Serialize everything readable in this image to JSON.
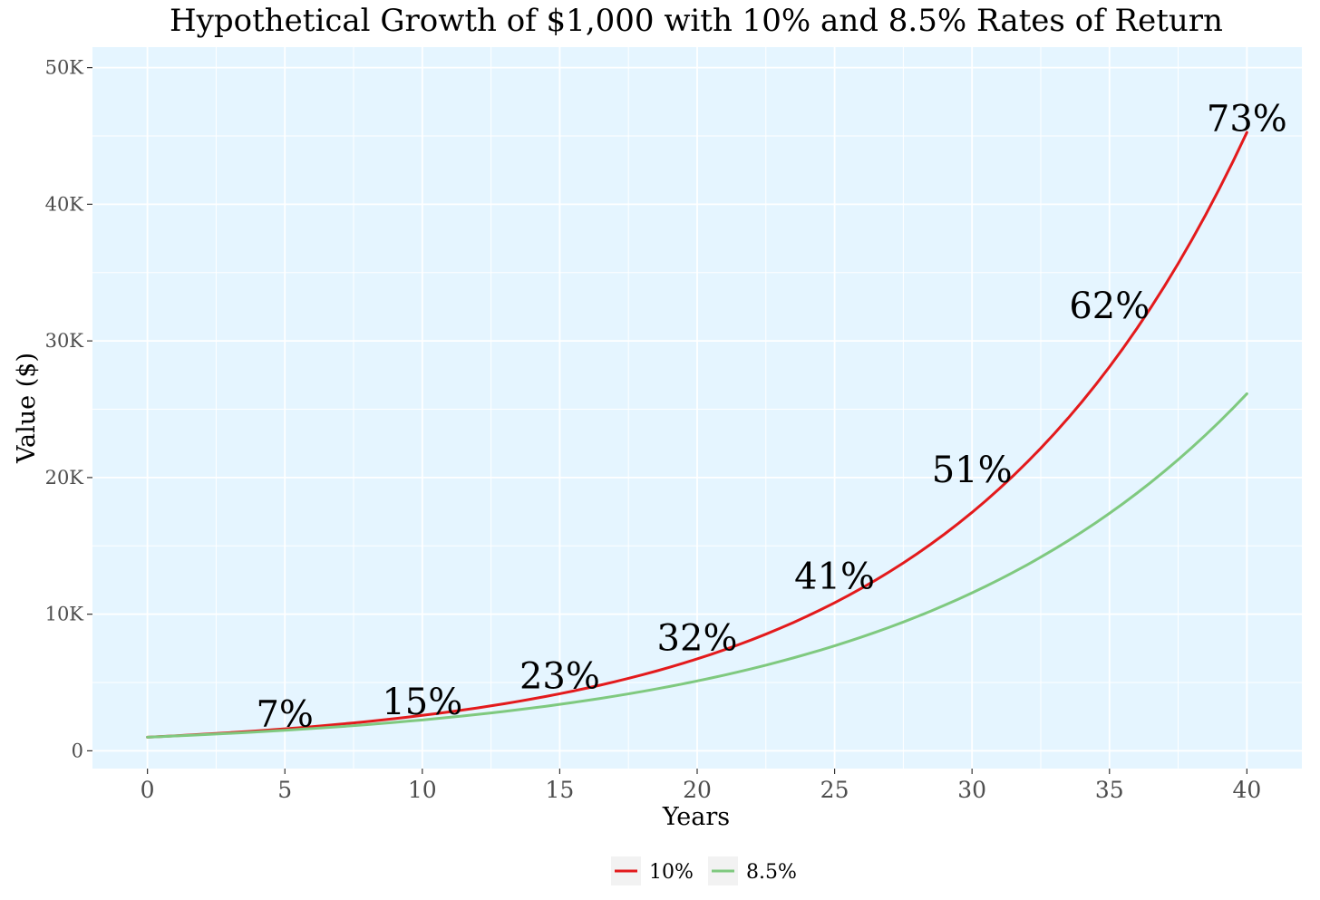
{
  "chart_data": {
    "type": "line",
    "title": "Hypothetical Growth of $1,000 with 10% and 8.5% Rates of Return",
    "xlabel": "Years",
    "ylabel": "Value ($)",
    "xlim": [
      -2,
      42
    ],
    "ylim": [
      -1300,
      51500
    ],
    "x_ticks": [
      0,
      5,
      10,
      15,
      20,
      25,
      30,
      35,
      40
    ],
    "x_tick_labels": [
      "0",
      "5",
      "10",
      "15",
      "20",
      "25",
      "30",
      "35",
      "40"
    ],
    "y_ticks": [
      0,
      10000,
      20000,
      30000,
      40000,
      50000
    ],
    "y_tick_labels": [
      "0",
      "10K",
      "20K",
      "30K",
      "40K",
      "50K"
    ],
    "grid": true,
    "background": "#e5f5ff",
    "legend_position": "bottom",
    "series": [
      {
        "name": "10%",
        "rate": 0.1,
        "principal": 1000,
        "color": "#e31a1c"
      },
      {
        "name": "8.5%",
        "rate": 0.085,
        "principal": 1000,
        "color": "#7fc97f"
      }
    ],
    "annotations": [
      {
        "x": 5,
        "y": 2700,
        "text": "7%"
      },
      {
        "x": 10,
        "y": 3600,
        "text": "15%"
      },
      {
        "x": 15,
        "y": 5500,
        "text": "23%"
      },
      {
        "x": 20,
        "y": 8300,
        "text": "32%"
      },
      {
        "x": 25,
        "y": 12800,
        "text": "41%"
      },
      {
        "x": 30,
        "y": 20600,
        "text": "51%"
      },
      {
        "x": 35,
        "y": 32600,
        "text": "62%"
      },
      {
        "x": 40,
        "y": 46300,
        "text": "73%"
      }
    ]
  }
}
